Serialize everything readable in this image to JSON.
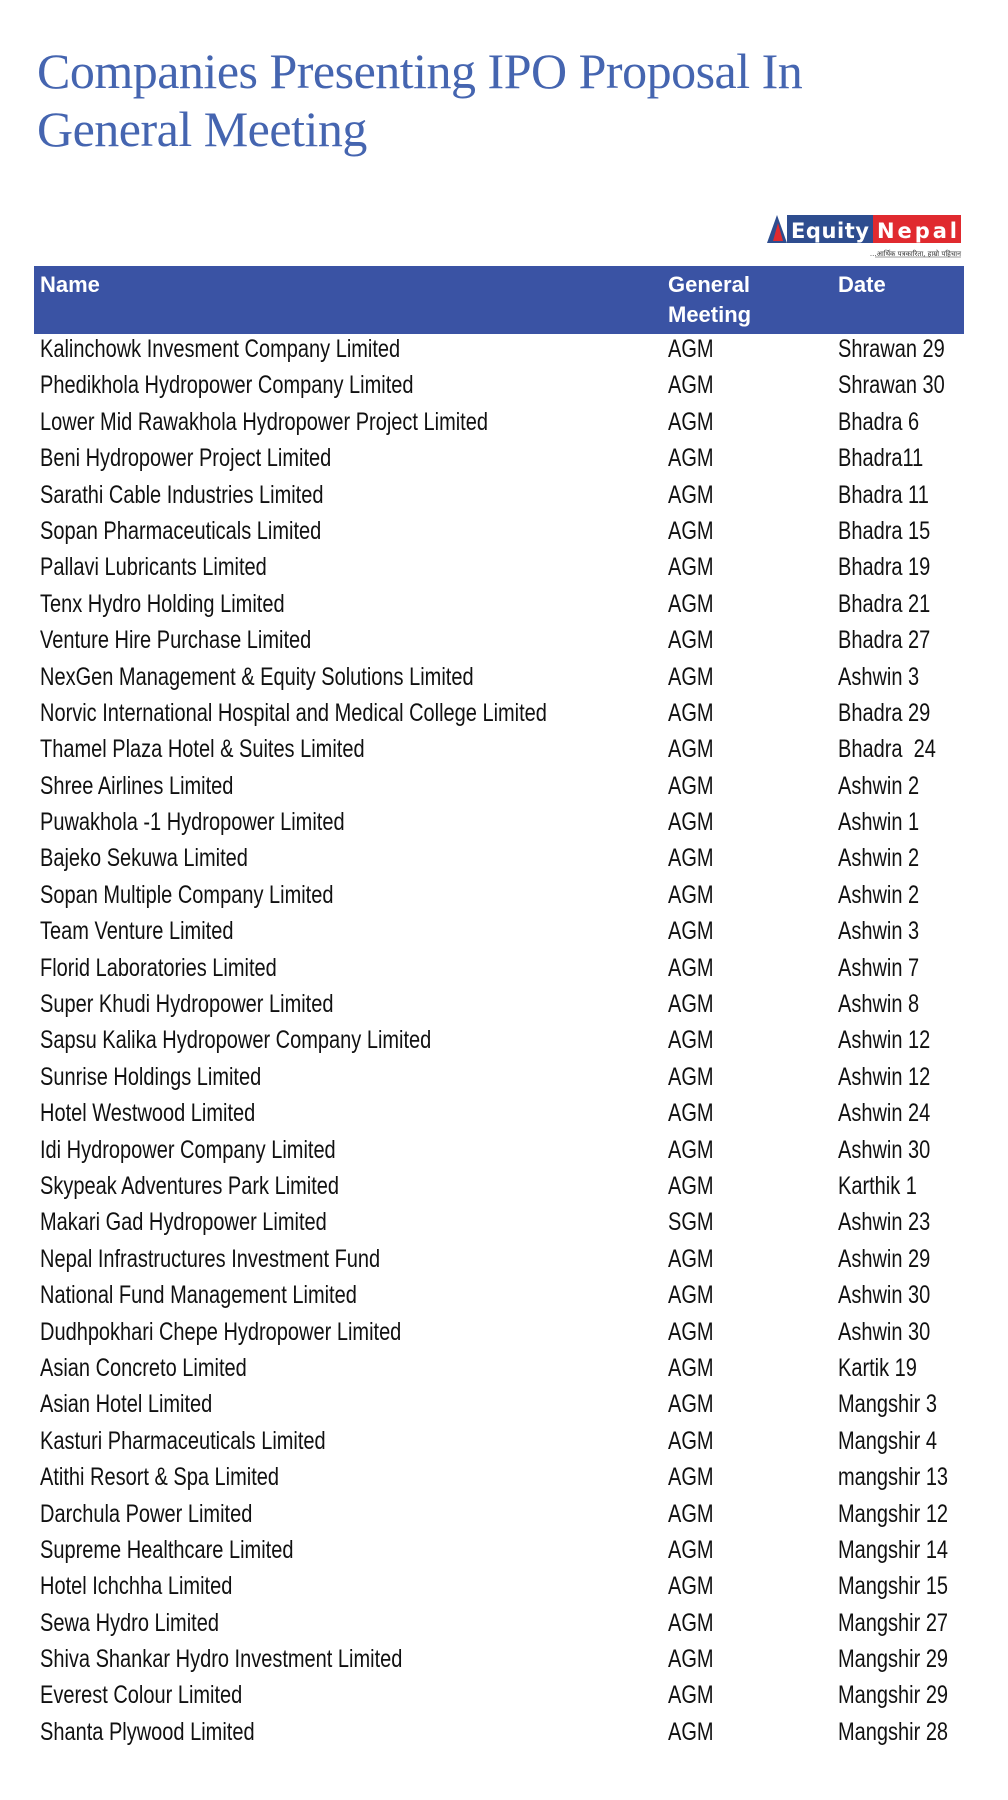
{
  "title": {
    "line1": "Companies Presenting IPO Proposal In",
    "line2": "General Meeting"
  },
  "logo": {
    "text_left": "Equity",
    "text_right": "Nepal",
    "tagline": "...आर्थिक पत्रकारिता, हाम्रो पहिचान",
    "colors": {
      "blue": "#2e4d8f",
      "red": "#e02a2f"
    }
  },
  "colors": {
    "title": "#4565b0",
    "header_bg": "#3a53a4"
  },
  "table": {
    "headers": [
      "Name",
      "General\nMeeting",
      "Date"
    ],
    "rows": [
      [
        "Kalinchowk Invesment Company Limited",
        "AGM",
        "Shrawan 29"
      ],
      [
        "Phedikhola Hydropower Company Limited",
        "AGM",
        "Shrawan 30"
      ],
      [
        "Lower Mid Rawakhola Hydropower Project Limited",
        "AGM",
        "Bhadra 6"
      ],
      [
        "Beni Hydropower Project Limited",
        "AGM",
        "Bhadra11"
      ],
      [
        "Sarathi Cable Industries Limited",
        "AGM",
        "Bhadra 11"
      ],
      [
        "Sopan Pharmaceuticals Limited",
        "AGM",
        "Bhadra 15"
      ],
      [
        "Pallavi Lubricants Limited",
        "AGM",
        "Bhadra 19"
      ],
      [
        "Tenx Hydro Holding Limited",
        "AGM",
        "Bhadra 21"
      ],
      [
        "Venture Hire Purchase Limited",
        "AGM",
        "Bhadra 27"
      ],
      [
        "NexGen Management & Equity Solutions Limited",
        "AGM",
        "Ashwin 3"
      ],
      [
        "Norvic International Hospital and Medical College Limited",
        "AGM",
        "Bhadra 29"
      ],
      [
        "Thamel Plaza Hotel & Suites Limited",
        "AGM",
        "Bhadra  24"
      ],
      [
        "Shree Airlines Limited",
        "AGM",
        "Ashwin 2"
      ],
      [
        "Puwakhola -1 Hydropower Limited",
        "AGM",
        "Ashwin 1"
      ],
      [
        "Bajeko Sekuwa Limited",
        "AGM",
        "Ashwin 2"
      ],
      [
        "Sopan Multiple Company Limited",
        "AGM",
        "Ashwin 2"
      ],
      [
        "Team Venture Limited",
        "AGM",
        "Ashwin 3"
      ],
      [
        "Florid Laboratories Limited",
        "AGM",
        "Ashwin 7"
      ],
      [
        "Super Khudi Hydropower Limited",
        "AGM",
        "Ashwin 8"
      ],
      [
        "Sapsu Kalika Hydropower Company Limited",
        "AGM",
        "Ashwin 12"
      ],
      [
        "Sunrise Holdings Limited",
        "AGM",
        "Ashwin 12"
      ],
      [
        "Hotel Westwood Limited",
        "AGM",
        "Ashwin 24"
      ],
      [
        "Idi Hydropower Company Limited",
        "AGM",
        "Ashwin 30"
      ],
      [
        "Skypeak Adventures Park Limited",
        "AGM",
        "Karthik 1"
      ],
      [
        "Makari Gad Hydropower Limited",
        "SGM",
        "Ashwin 23"
      ],
      [
        "Nepal Infrastructures Investment Fund",
        "AGM",
        "Ashwin 29"
      ],
      [
        "National Fund Management Limited",
        "AGM",
        "Ashwin 30"
      ],
      [
        "Dudhpokhari Chepe Hydropower Limited",
        "AGM",
        "Ashwin 30"
      ],
      [
        "Asian Concreto Limited",
        "AGM",
        "Kartik 19"
      ],
      [
        "Asian Hotel Limited",
        "AGM",
        "Mangshir 3"
      ],
      [
        "Kasturi Pharmaceuticals Limited",
        "AGM",
        "Mangshir 4"
      ],
      [
        "Atithi Resort & Spa Limited",
        "AGM",
        "mangshir 13"
      ],
      [
        "Darchula Power Limited",
        "AGM",
        "Mangshir 12"
      ],
      [
        "Supreme Healthcare Limited",
        "AGM",
        "Mangshir 14"
      ],
      [
        "Hotel Ichchha Limited",
        "AGM",
        "Mangshir 15"
      ],
      [
        "Sewa Hydro Limited",
        "AGM",
        "Mangshir 27"
      ],
      [
        "Shiva Shankar Hydro Investment Limited",
        "AGM",
        "Mangshir 29"
      ],
      [
        "Everest Colour Limited",
        "AGM",
        "Mangshir 29"
      ],
      [
        "Shanta Plywood Limited",
        "AGM",
        "Mangshir 28"
      ]
    ]
  }
}
